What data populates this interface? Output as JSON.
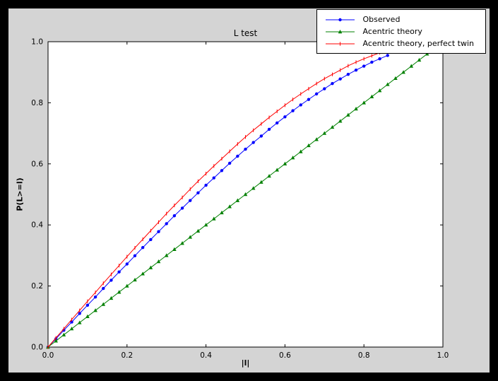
{
  "colors": {
    "figure_background": "#d4d4d4",
    "axes_background": "#ffffff",
    "frame": "#000000"
  },
  "chart_data": {
    "type": "line",
    "title": "L test",
    "xlabel": "|l|",
    "ylabel": "P(L>=l)",
    "xlim": [
      0.0,
      1.0
    ],
    "ylim": [
      0.0,
      1.0
    ],
    "grid": false,
    "legend_position": "upper right",
    "xtick_labels": [
      "0.0",
      "0.2",
      "0.4",
      "0.6",
      "0.8",
      "1.0"
    ],
    "ytick_labels": [
      "0.0",
      "0.2",
      "0.4",
      "0.6",
      "0.8",
      "1.0"
    ],
    "series": [
      {
        "name": "Observed",
        "color": "#0000ff",
        "marker": "circle",
        "x": [
          0.0,
          0.02,
          0.04,
          0.06,
          0.08,
          0.1,
          0.12,
          0.14,
          0.16,
          0.18,
          0.2,
          0.22,
          0.24,
          0.26,
          0.28,
          0.3,
          0.32,
          0.34,
          0.36,
          0.38,
          0.4,
          0.42,
          0.44,
          0.46,
          0.48,
          0.5,
          0.52,
          0.54,
          0.56,
          0.58,
          0.6,
          0.62,
          0.64,
          0.66,
          0.68,
          0.7,
          0.72,
          0.74,
          0.76,
          0.78,
          0.8,
          0.82,
          0.84,
          0.86
        ],
        "y": [
          0.0,
          0.027,
          0.055,
          0.082,
          0.11,
          0.137,
          0.164,
          0.192,
          0.219,
          0.246,
          0.272,
          0.299,
          0.326,
          0.352,
          0.378,
          0.404,
          0.43,
          0.455,
          0.48,
          0.505,
          0.53,
          0.554,
          0.578,
          0.602,
          0.625,
          0.648,
          0.67,
          0.691,
          0.713,
          0.734,
          0.754,
          0.774,
          0.793,
          0.811,
          0.829,
          0.846,
          0.863,
          0.878,
          0.893,
          0.907,
          0.92,
          0.933,
          0.944,
          0.955
        ]
      },
      {
        "name": "Acentric theory",
        "color": "#008000",
        "marker": "triangle",
        "x": [
          0.0,
          0.02,
          0.04,
          0.06,
          0.08,
          0.1,
          0.12,
          0.14,
          0.16,
          0.18,
          0.2,
          0.22,
          0.24,
          0.26,
          0.28,
          0.3,
          0.32,
          0.34,
          0.36,
          0.38,
          0.4,
          0.42,
          0.44,
          0.46,
          0.48,
          0.5,
          0.52,
          0.54,
          0.56,
          0.58,
          0.6,
          0.62,
          0.64,
          0.66,
          0.68,
          0.7,
          0.72,
          0.74,
          0.76,
          0.78,
          0.8,
          0.82,
          0.84,
          0.86,
          0.88,
          0.9,
          0.92,
          0.94,
          0.96
        ],
        "y": [
          0.0,
          0.02,
          0.04,
          0.06,
          0.08,
          0.1,
          0.12,
          0.14,
          0.16,
          0.18,
          0.2,
          0.22,
          0.24,
          0.26,
          0.28,
          0.3,
          0.32,
          0.34,
          0.36,
          0.38,
          0.4,
          0.42,
          0.44,
          0.46,
          0.48,
          0.5,
          0.52,
          0.54,
          0.56,
          0.58,
          0.6,
          0.62,
          0.64,
          0.66,
          0.68,
          0.7,
          0.72,
          0.74,
          0.76,
          0.78,
          0.8,
          0.82,
          0.84,
          0.86,
          0.88,
          0.9,
          0.92,
          0.94,
          0.96
        ]
      },
      {
        "name": "Acentric theory, perfect twin",
        "color": "#ff0000",
        "marker": "tick",
        "x": [
          0.0,
          0.02,
          0.04,
          0.06,
          0.08,
          0.1,
          0.12,
          0.14,
          0.16,
          0.18,
          0.2,
          0.22,
          0.24,
          0.26,
          0.28,
          0.3,
          0.32,
          0.34,
          0.36,
          0.38,
          0.4,
          0.42,
          0.44,
          0.46,
          0.48,
          0.5,
          0.52,
          0.54,
          0.56,
          0.58,
          0.6,
          0.62,
          0.64,
          0.66,
          0.68,
          0.7,
          0.72,
          0.74,
          0.76,
          0.78,
          0.8,
          0.82,
          0.84,
          0.86
        ],
        "y": [
          0.0,
          0.03,
          0.06,
          0.09,
          0.12,
          0.15,
          0.179,
          0.209,
          0.238,
          0.267,
          0.296,
          0.325,
          0.353,
          0.381,
          0.409,
          0.437,
          0.464,
          0.49,
          0.517,
          0.543,
          0.568,
          0.593,
          0.617,
          0.641,
          0.665,
          0.688,
          0.71,
          0.731,
          0.752,
          0.772,
          0.792,
          0.811,
          0.829,
          0.846,
          0.863,
          0.879,
          0.893,
          0.907,
          0.921,
          0.933,
          0.944,
          0.954,
          0.964,
          0.972
        ]
      }
    ]
  }
}
